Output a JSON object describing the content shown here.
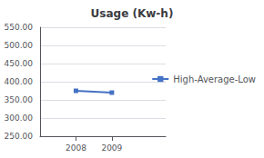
{
  "chart_data": {
    "type": "line",
    "title": "Usage (Kw-h)",
    "x": [
      2008,
      2009
    ],
    "series": [
      {
        "name": "High-Average-Low",
        "color": "#4472C4",
        "values": [
          375,
          370
        ],
        "marker": "square"
      }
    ],
    "xlim": [
      2007,
      2010.5
    ],
    "xticks": [
      2008,
      2009
    ],
    "ylim": [
      250,
      550
    ],
    "yticks": [
      {
        "value": 250,
        "label": "250.00"
      },
      {
        "value": 300,
        "label": "300.00"
      },
      {
        "value": 350,
        "label": "350.00"
      },
      {
        "value": 400,
        "label": "400.00"
      },
      {
        "value": 450,
        "label": "450.00"
      },
      {
        "value": 500,
        "label": "500.00"
      },
      {
        "value": 550,
        "label": "550.00"
      }
    ],
    "grid": true,
    "legend": "right"
  }
}
